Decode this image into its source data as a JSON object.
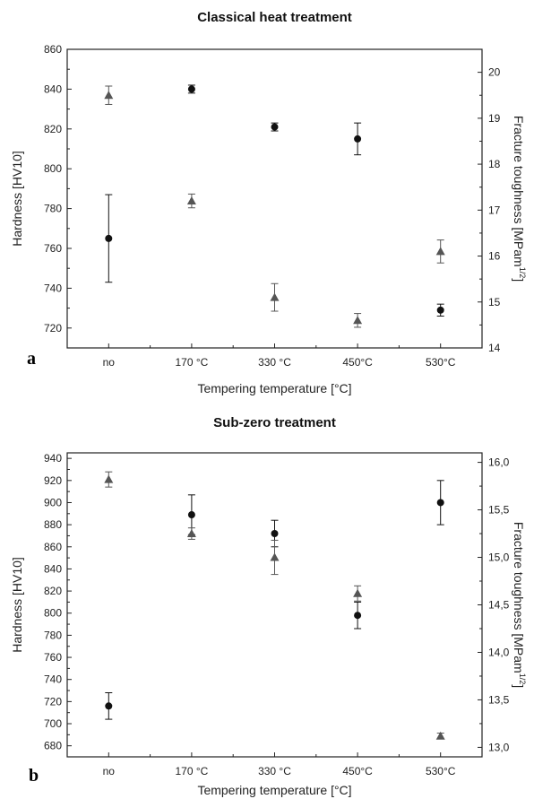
{
  "chart_data": [
    {
      "type": "scatter",
      "panel_label": "a",
      "title": "Classical heat treatment",
      "xlabel": "Tempering temperature [°C]",
      "ylabel_left": "Hardness [HV10]",
      "ylabel_right_main": "Fracture toughness [MPam",
      "ylabel_right_exp": "1/2",
      "ylabel_right_close": "]",
      "categories": [
        "no",
        "170 °C",
        "330 °C",
        "450°C",
        "530°C"
      ],
      "ylim_left": [
        710,
        860
      ],
      "yticks_left": [
        720,
        740,
        760,
        780,
        800,
        820,
        840,
        860
      ],
      "ylim_right": [
        14,
        20.5
      ],
      "yticks_right": [
        "14",
        "15",
        "16",
        "17",
        "18",
        "19",
        "20"
      ],
      "yticks_right_values": [
        14,
        15,
        16,
        17,
        18,
        19,
        20
      ],
      "series": [
        {
          "marker": "circle",
          "axis": "left",
          "values": [
            765,
            840,
            821,
            815,
            729
          ],
          "errors": [
            22,
            2,
            2,
            8,
            3
          ]
        },
        {
          "marker": "triangle",
          "axis": "right",
          "values": [
            19.5,
            17.2,
            15.1,
            14.6,
            16.1
          ],
          "errors": [
            0.2,
            0.15,
            0.3,
            0.15,
            0.25
          ]
        }
      ]
    },
    {
      "type": "scatter",
      "panel_label": "b",
      "title": "Sub-zero treatment",
      "xlabel": "Tempering temperature [°C]",
      "ylabel_left": "Hardness [HV10]",
      "ylabel_right_main": "Fracture toughness [MPam",
      "ylabel_right_exp": "1/2",
      "ylabel_right_close": "]",
      "categories": [
        "no",
        "170 °C",
        "330 °C",
        "450°C",
        "530°C"
      ],
      "ylim_left": [
        670,
        945
      ],
      "yticks_left": [
        680,
        700,
        720,
        740,
        760,
        780,
        800,
        820,
        840,
        860,
        880,
        900,
        920,
        940
      ],
      "ylim_right": [
        12.9,
        16.1
      ],
      "yticks_right": [
        "13,0",
        "13,5",
        "14,0",
        "14,5",
        "15,0",
        "15,5",
        "16,0"
      ],
      "yticks_right_values": [
        13.0,
        13.5,
        14.0,
        14.5,
        15.0,
        15.5,
        16.0
      ],
      "series": [
        {
          "marker": "circle",
          "axis": "left",
          "values": [
            716,
            889,
            872,
            798,
            900
          ],
          "errors": [
            12,
            18,
            12,
            12,
            20
          ]
        },
        {
          "marker": "triangle",
          "axis": "right",
          "values": [
            15.82,
            15.25,
            15.0,
            14.62,
            13.12
          ],
          "errors": [
            0.08,
            0.06,
            0.18,
            0.08,
            0.03
          ]
        }
      ]
    }
  ]
}
